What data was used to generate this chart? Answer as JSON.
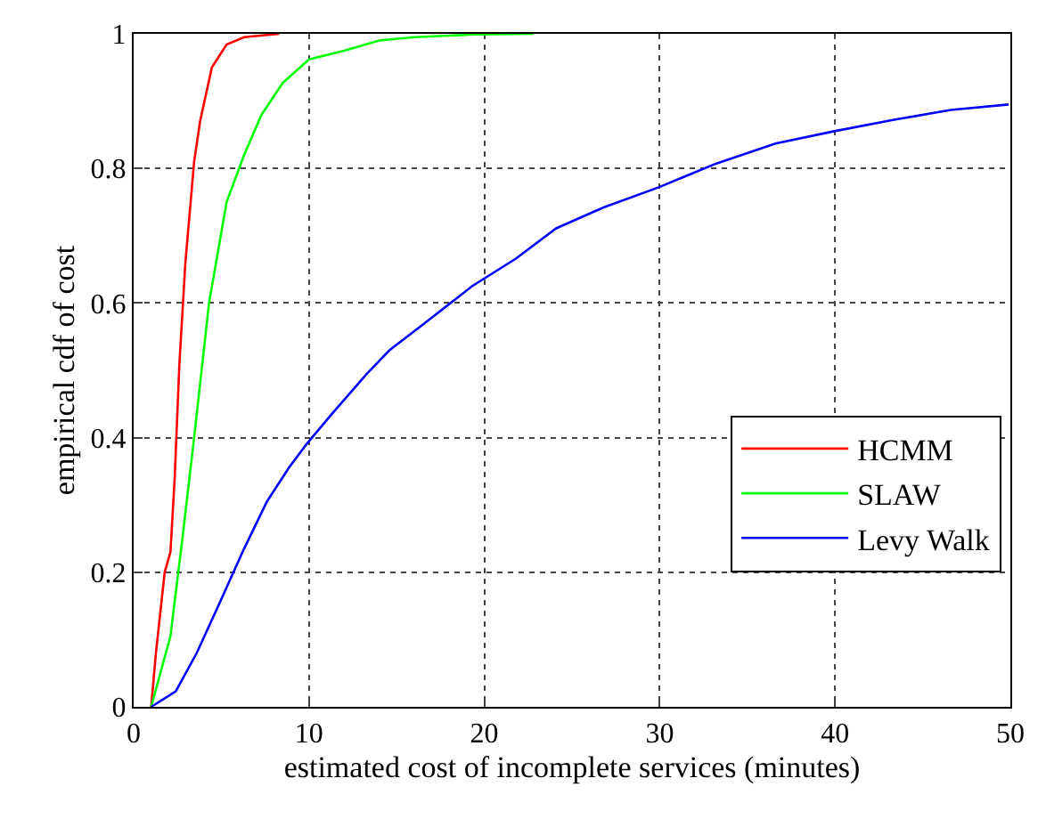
{
  "chart_data": {
    "type": "line",
    "xlabel": "estimated cost of incomplete services (minutes)",
    "ylabel": "empirical cdf of cost",
    "xlim": [
      0,
      50
    ],
    "ylim": [
      0,
      1
    ],
    "xticks": [
      0,
      10,
      20,
      30,
      40,
      50
    ],
    "yticks": [
      0,
      0.2,
      0.4,
      0.6,
      0.8,
      1
    ],
    "grid": true,
    "legend": "bottom right",
    "marker": "none",
    "line_style": "solid",
    "series": [
      {
        "name": "HCMM",
        "color": "#ff0000",
        "x": [
          1.0,
          1.27,
          1.77,
          2.1,
          2.34,
          2.61,
          2.95,
          3.45,
          3.79,
          4.46,
          5.3,
          6.3,
          8.3
        ],
        "values": [
          0,
          0.08,
          0.2,
          0.23,
          0.34,
          0.51,
          0.66,
          0.81,
          0.87,
          0.95,
          0.984,
          0.995,
          1.0
        ]
      },
      {
        "name": "SLAW",
        "color": "#00ff00",
        "x": [
          1.0,
          2.1,
          2.78,
          3.45,
          4.3,
          5.3,
          6.3,
          7.3,
          8.5,
          10.0,
          12.0,
          14.0,
          16.0,
          19.4,
          22.8
        ],
        "values": [
          0,
          0.105,
          0.25,
          0.4,
          0.6,
          0.75,
          0.82,
          0.88,
          0.927,
          0.962,
          0.975,
          0.99,
          0.995,
          0.999,
          1.0
        ]
      },
      {
        "name": "Levy Walk",
        "color": "#0000ff",
        "x": [
          1.0,
          2.4,
          3.6,
          4.95,
          6.3,
          7.6,
          8.9,
          9.85,
          11.3,
          13.3,
          14.6,
          16.6,
          19.3,
          21.8,
          24.1,
          26.8,
          29.95,
          33.2,
          36.6,
          39.9,
          43.3,
          46.6,
          49.9
        ],
        "values": [
          0,
          0.023,
          0.08,
          0.157,
          0.235,
          0.305,
          0.357,
          0.39,
          0.435,
          0.495,
          0.53,
          0.57,
          0.625,
          0.666,
          0.711,
          0.742,
          0.772,
          0.807,
          0.837,
          0.855,
          0.872,
          0.887,
          0.895
        ]
      }
    ]
  }
}
